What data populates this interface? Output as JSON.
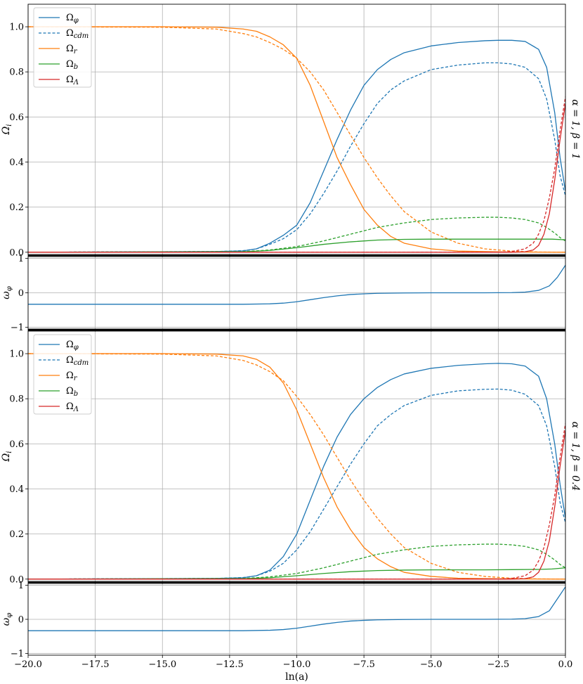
{
  "chart_data": [
    {
      "type": "line",
      "row_label": "α = 1, β = 1",
      "xlabel": "ln(a)",
      "ylabel": "Ω_i",
      "xlim": [
        -20.0,
        0.0
      ],
      "ylim": [
        -0.01,
        1.1
      ],
      "yticks": [
        "0.0",
        "0.2",
        "0.4",
        "0.6",
        "0.8",
        "1.0"
      ],
      "grid": true,
      "legend_position": "top-left",
      "series": [
        {
          "name": "Ω_φ",
          "style": "solid",
          "color": "#1f77b4",
          "x": [
            -20,
            -13,
            -12,
            -11.5,
            -11,
            -10.5,
            -10,
            -9.5,
            -9,
            -8.5,
            -8,
            -7.5,
            -7,
            -6.5,
            -6,
            -5,
            -4,
            -3,
            -2.5,
            -2,
            -1.5,
            -1,
            -0.7,
            -0.4,
            -0.2,
            0
          ],
          "y": [
            0,
            0.003,
            0.006,
            0.015,
            0.04,
            0.075,
            0.12,
            0.22,
            0.36,
            0.5,
            0.63,
            0.74,
            0.81,
            0.855,
            0.885,
            0.915,
            0.93,
            0.938,
            0.94,
            0.94,
            0.935,
            0.9,
            0.82,
            0.62,
            0.42,
            0.27
          ]
        },
        {
          "name": "Ω_cdm",
          "style": "dashed",
          "color": "#1f77b4",
          "x": [
            -20,
            -13,
            -12,
            -11.5,
            -11,
            -10.5,
            -10,
            -9.5,
            -9,
            -8.5,
            -8,
            -7.5,
            -7,
            -6.5,
            -6,
            -5,
            -4,
            -3,
            -2.5,
            -2,
            -1.5,
            -1,
            -0.7,
            -0.4,
            -0.2,
            0
          ],
          "y": [
            0,
            0.003,
            0.007,
            0.015,
            0.035,
            0.06,
            0.1,
            0.17,
            0.26,
            0.36,
            0.47,
            0.57,
            0.66,
            0.72,
            0.76,
            0.81,
            0.83,
            0.84,
            0.84,
            0.835,
            0.82,
            0.77,
            0.68,
            0.5,
            0.34,
            0.25
          ]
        },
        {
          "name": "Ω_r",
          "style": "solid",
          "color": "#ff7f0e",
          "x": [
            -20,
            -15,
            -13,
            -12,
            -11.5,
            -11,
            -10.5,
            -10,
            -9.5,
            -9,
            -8.5,
            -8,
            -7.5,
            -7,
            -6.5,
            -6,
            -5,
            -4,
            -2,
            0
          ],
          "y": [
            1.0,
            1.0,
            0.998,
            0.99,
            0.98,
            0.955,
            0.92,
            0.86,
            0.74,
            0.58,
            0.42,
            0.3,
            0.19,
            0.12,
            0.07,
            0.04,
            0.015,
            0.005,
            0.001,
            0
          ]
        },
        {
          "name": "Ω_r (dashed)",
          "style": "dashed",
          "color": "#ff7f0e",
          "x": [
            -20,
            -15,
            -13,
            -12,
            -11.5,
            -11,
            -10.5,
            -10,
            -9.5,
            -9,
            -8.5,
            -8,
            -7.5,
            -7,
            -6.5,
            -6,
            -5,
            -4,
            -3,
            -2,
            -1,
            0
          ],
          "y": [
            1.0,
            0.998,
            0.99,
            0.97,
            0.955,
            0.93,
            0.9,
            0.86,
            0.8,
            0.72,
            0.62,
            0.52,
            0.42,
            0.33,
            0.25,
            0.18,
            0.09,
            0.04,
            0.015,
            0.005,
            0.001,
            0
          ]
        },
        {
          "name": "Ω_b",
          "style": "solid",
          "color": "#2ca02c",
          "x": [
            -20,
            -12,
            -11,
            -10,
            -9,
            -8,
            -7,
            -6,
            -5,
            -4,
            -3,
            -2,
            -1,
            -0.5,
            0
          ],
          "y": [
            0,
            0.002,
            0.008,
            0.02,
            0.035,
            0.046,
            0.054,
            0.057,
            0.058,
            0.058,
            0.058,
            0.058,
            0.058,
            0.058,
            0.055
          ]
        },
        {
          "name": "Ω_b (dashed)",
          "style": "dashed",
          "color": "#2ca02c",
          "x": [
            -20,
            -12,
            -11,
            -10,
            -9,
            -8,
            -7,
            -6,
            -5,
            -4,
            -3,
            -2.5,
            -2,
            -1.5,
            -1,
            -0.7,
            -0.4,
            -0.2,
            0
          ],
          "y": [
            0,
            0.003,
            0.01,
            0.025,
            0.05,
            0.08,
            0.11,
            0.13,
            0.145,
            0.152,
            0.155,
            0.155,
            0.152,
            0.145,
            0.13,
            0.11,
            0.085,
            0.065,
            0.05
          ]
        },
        {
          "name": "Ω_Λ",
          "style": "solid",
          "color": "#d62728",
          "x": [
            -20,
            -2,
            -1.5,
            -1.2,
            -1,
            -0.8,
            -0.6,
            -0.4,
            -0.2,
            0
          ],
          "y": [
            0,
            0,
            0.002,
            0.01,
            0.03,
            0.08,
            0.17,
            0.32,
            0.5,
            0.66
          ]
        },
        {
          "name": "Ω_Λ (dashed)",
          "style": "dashed",
          "color": "#d62728",
          "x": [
            -20,
            -2.5,
            -2,
            -1.5,
            -1.2,
            -1,
            -0.8,
            -0.6,
            -0.4,
            -0.2,
            0
          ],
          "y": [
            0,
            0,
            0.003,
            0.015,
            0.04,
            0.08,
            0.14,
            0.24,
            0.37,
            0.54,
            0.69
          ]
        }
      ]
    },
    {
      "type": "line",
      "xlabel": "ln(a)",
      "ylabel": "ω_φ",
      "xlim": [
        -20.0,
        0.0
      ],
      "ylim": [
        -1.05,
        1.05
      ],
      "yticks": [
        "−1",
        "0",
        "1"
      ],
      "grid": true,
      "series": [
        {
          "name": "ω_φ",
          "style": "solid",
          "color": "#1f77b4",
          "x": [
            -20,
            -12,
            -11,
            -10.5,
            -10,
            -9.5,
            -9,
            -8.5,
            -8,
            -7.5,
            -7,
            -6,
            -5,
            -4,
            -3,
            -2,
            -1.5,
            -1,
            -0.6,
            -0.3,
            0
          ],
          "y": [
            -0.333,
            -0.333,
            -0.32,
            -0.3,
            -0.26,
            -0.2,
            -0.14,
            -0.09,
            -0.05,
            -0.03,
            -0.015,
            -0.005,
            0,
            0,
            0,
            0.005,
            0.02,
            0.07,
            0.2,
            0.45,
            0.8
          ]
        }
      ]
    },
    {
      "type": "line",
      "row_label": "α = 1, β = 0.4",
      "xlabel": "ln(a)",
      "ylabel": "Ω_i",
      "xlim": [
        -20.0,
        0.0
      ],
      "ylim": [
        -0.01,
        1.1
      ],
      "yticks": [
        "0.0",
        "0.2",
        "0.4",
        "0.6",
        "0.8",
        "1.0"
      ],
      "grid": true,
      "legend_position": "top-left",
      "series": [
        {
          "name": "Ω_φ",
          "style": "solid",
          "color": "#1f77b4",
          "x": [
            -20,
            -13,
            -12,
            -11.5,
            -11,
            -10.5,
            -10,
            -9.5,
            -9,
            -8.5,
            -8,
            -7.5,
            -7,
            -6.5,
            -6,
            -5,
            -4,
            -3,
            -2.5,
            -2,
            -1.5,
            -1,
            -0.7,
            -0.4,
            -0.2,
            0
          ],
          "y": [
            0,
            0.003,
            0.006,
            0.015,
            0.04,
            0.1,
            0.2,
            0.35,
            0.5,
            0.63,
            0.73,
            0.8,
            0.85,
            0.885,
            0.91,
            0.935,
            0.948,
            0.955,
            0.957,
            0.955,
            0.945,
            0.9,
            0.8,
            0.6,
            0.42,
            0.27
          ]
        },
        {
          "name": "Ω_cdm",
          "style": "dashed",
          "color": "#1f77b4",
          "x": [
            -20,
            -13,
            -12,
            -11.5,
            -11,
            -10.5,
            -10,
            -9.5,
            -9,
            -8.5,
            -8,
            -7.5,
            -7,
            -6.5,
            -6,
            -5,
            -4,
            -3,
            -2.5,
            -2,
            -1.5,
            -1,
            -0.7,
            -0.4,
            -0.2,
            0
          ],
          "y": [
            0,
            0.003,
            0.007,
            0.015,
            0.035,
            0.07,
            0.13,
            0.21,
            0.31,
            0.41,
            0.51,
            0.6,
            0.68,
            0.73,
            0.77,
            0.815,
            0.835,
            0.842,
            0.843,
            0.838,
            0.82,
            0.77,
            0.68,
            0.5,
            0.34,
            0.25
          ]
        },
        {
          "name": "Ω_r",
          "style": "solid",
          "color": "#ff7f0e",
          "x": [
            -20,
            -15,
            -13,
            -12,
            -11.5,
            -11,
            -10.5,
            -10,
            -9.5,
            -9,
            -8.5,
            -8,
            -7.5,
            -7,
            -6.5,
            -6,
            -5,
            -4,
            -2,
            0
          ],
          "y": [
            1.0,
            1.0,
            0.998,
            0.99,
            0.975,
            0.94,
            0.87,
            0.75,
            0.6,
            0.45,
            0.32,
            0.22,
            0.14,
            0.09,
            0.055,
            0.03,
            0.012,
            0.004,
            0.001,
            0
          ]
        },
        {
          "name": "Ω_r (dashed)",
          "style": "dashed",
          "color": "#ff7f0e",
          "x": [
            -20,
            -15,
            -13,
            -12,
            -11.5,
            -11,
            -10.5,
            -10,
            -9.5,
            -9,
            -8.5,
            -8,
            -7.5,
            -7,
            -6.5,
            -6,
            -5,
            -4,
            -3,
            -2,
            -1,
            0
          ],
          "y": [
            1.0,
            0.998,
            0.99,
            0.97,
            0.95,
            0.92,
            0.88,
            0.81,
            0.73,
            0.64,
            0.54,
            0.44,
            0.35,
            0.27,
            0.2,
            0.14,
            0.07,
            0.03,
            0.012,
            0.004,
            0.001,
            0
          ]
        },
        {
          "name": "Ω_b",
          "style": "solid",
          "color": "#2ca02c",
          "x": [
            -20,
            -12,
            -11,
            -10,
            -9,
            -8,
            -7,
            -6,
            -5,
            -4,
            -3,
            -2,
            -1,
            -0.5,
            0
          ],
          "y": [
            0,
            0.002,
            0.006,
            0.015,
            0.025,
            0.033,
            0.038,
            0.04,
            0.041,
            0.041,
            0.041,
            0.042,
            0.043,
            0.045,
            0.05
          ]
        },
        {
          "name": "Ω_b (dashed)",
          "style": "dashed",
          "color": "#2ca02c",
          "x": [
            -20,
            -12,
            -11,
            -10,
            -9,
            -8,
            -7,
            -6,
            -5,
            -4,
            -3,
            -2.5,
            -2,
            -1.5,
            -1,
            -0.7,
            -0.4,
            -0.2,
            0
          ],
          "y": [
            0,
            0.003,
            0.01,
            0.025,
            0.05,
            0.08,
            0.11,
            0.13,
            0.145,
            0.152,
            0.155,
            0.155,
            0.152,
            0.145,
            0.13,
            0.11,
            0.085,
            0.065,
            0.05
          ]
        },
        {
          "name": "Ω_Λ",
          "style": "solid",
          "color": "#d62728",
          "x": [
            -20,
            -2,
            -1.5,
            -1.2,
            -1,
            -0.8,
            -0.6,
            -0.4,
            -0.2,
            0
          ],
          "y": [
            0,
            0,
            0.002,
            0.01,
            0.03,
            0.08,
            0.17,
            0.32,
            0.5,
            0.66
          ]
        },
        {
          "name": "Ω_Λ (dashed)",
          "style": "dashed",
          "color": "#d62728",
          "x": [
            -20,
            -2.5,
            -2,
            -1.5,
            -1.2,
            -1,
            -0.8,
            -0.6,
            -0.4,
            -0.2,
            0
          ],
          "y": [
            0,
            0,
            0.003,
            0.015,
            0.04,
            0.08,
            0.14,
            0.24,
            0.37,
            0.54,
            0.69
          ]
        }
      ]
    },
    {
      "type": "line",
      "xlabel": "ln(a)",
      "ylabel": "ω_φ",
      "xlim": [
        -20.0,
        0.0
      ],
      "ylim": [
        -1.05,
        1.05
      ],
      "yticks": [
        "−1",
        "0",
        "1"
      ],
      "xticks": [
        "−20.0",
        "−17.5",
        "−15.0",
        "−12.5",
        "−10.0",
        "−7.5",
        "−5.0",
        "−2.5",
        "0.0"
      ],
      "grid": true,
      "series": [
        {
          "name": "ω_φ",
          "style": "solid",
          "color": "#1f77b4",
          "x": [
            -20,
            -12,
            -11,
            -10.5,
            -10,
            -9.5,
            -9,
            -8.5,
            -8,
            -7.5,
            -7,
            -6,
            -5,
            -4,
            -3,
            -2,
            -1.5,
            -1,
            -0.6,
            -0.3,
            0
          ],
          "y": [
            -0.333,
            -0.333,
            -0.32,
            -0.3,
            -0.26,
            -0.2,
            -0.14,
            -0.09,
            -0.05,
            -0.03,
            -0.015,
            -0.005,
            0,
            0,
            0,
            0.005,
            0.02,
            0.08,
            0.25,
            0.6,
            0.95
          ]
        }
      ]
    }
  ],
  "legend": [
    {
      "main": "Ω",
      "sub": "φ",
      "style": "solid",
      "color": "#1f77b4"
    },
    {
      "main": "Ω",
      "sub": "cdm",
      "style": "dashed",
      "color": "#1f77b4"
    },
    {
      "main": "Ω",
      "sub": "r",
      "style": "solid",
      "color": "#ff7f0e"
    },
    {
      "main": "Ω",
      "sub": "b",
      "style": "solid",
      "color": "#2ca02c"
    },
    {
      "main": "Ω",
      "sub": "Λ",
      "style": "solid",
      "color": "#d62728"
    }
  ],
  "xlabel_text": "ln(a)",
  "xtick_labels": [
    "−20.0",
    "−17.5",
    "−15.0",
    "−12.5",
    "−10.0",
    "−7.5",
    "−5.0",
    "−2.5",
    "0.0"
  ]
}
